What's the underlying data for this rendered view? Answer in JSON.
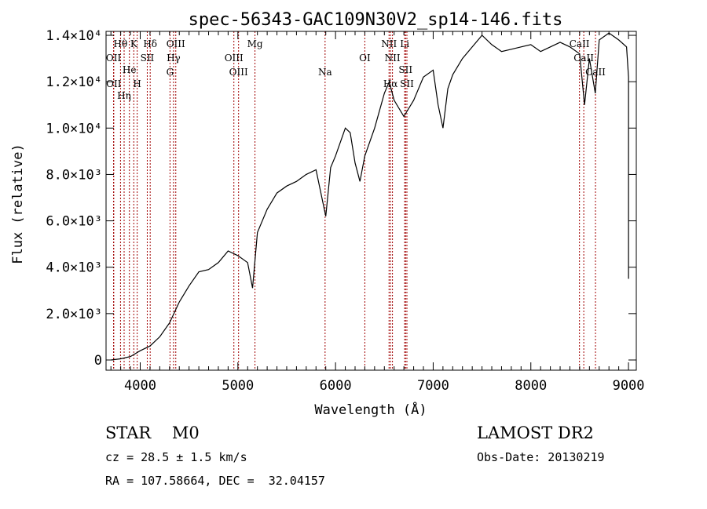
{
  "chart_data": {
    "type": "line",
    "title": "spec-56343-GAC109N30V2_sp14-146.fits",
    "xlabel": "Wavelength (Å)",
    "ylabel": "Flux (relative)",
    "xlim": [
      3650,
      9080
    ],
    "ylim": [
      -440,
      14170
    ],
    "xticks": [
      {
        "v": 4000,
        "label": "4000"
      },
      {
        "v": 5000,
        "label": "5000"
      },
      {
        "v": 6000,
        "label": "6000"
      },
      {
        "v": 7000,
        "label": "7000"
      },
      {
        "v": 8000,
        "label": "8000"
      },
      {
        "v": 9000,
        "label": "9000"
      }
    ],
    "yticks": [
      {
        "v": 0,
        "label": "0"
      },
      {
        "v": 2000,
        "label": "2.0×10³"
      },
      {
        "v": 4000,
        "label": "4.0×10³"
      },
      {
        "v": 6000,
        "label": "6.0×10³"
      },
      {
        "v": 8000,
        "label": "8.0×10³"
      },
      {
        "v": 10000,
        "label": "1.0×10⁴"
      },
      {
        "v": 12000,
        "label": "1.2×10⁴"
      },
      {
        "v": 14000,
        "label": "1.4×10⁴"
      }
    ],
    "series": [
      {
        "name": "spectrum",
        "x": [
          3700,
          3800,
          3900,
          4000,
          4100,
          4200,
          4300,
          4400,
          4500,
          4600,
          4700,
          4800,
          4900,
          5000,
          5100,
          5150,
          5200,
          5300,
          5400,
          5500,
          5600,
          5700,
          5800,
          5900,
          5950,
          6000,
          6100,
          6150,
          6200,
          6250,
          6300,
          6400,
          6500,
          6550,
          6600,
          6700,
          6800,
          6900,
          7000,
          7050,
          7100,
          7150,
          7200,
          7300,
          7400,
          7500,
          7600,
          7700,
          7800,
          7900,
          8000,
          8100,
          8200,
          8300,
          8400,
          8500,
          8550,
          8600,
          8660,
          8700,
          8800,
          8900,
          8980,
          9000,
          9000
        ],
        "y": [
          0,
          50,
          150,
          400,
          600,
          1000,
          1600,
          2500,
          3200,
          3800,
          3900,
          4200,
          4700,
          4500,
          4200,
          3100,
          5500,
          6500,
          7200,
          7500,
          7700,
          8000,
          8200,
          6200,
          8300,
          8800,
          10000,
          9800,
          8500,
          7700,
          8800,
          10000,
          11500,
          12000,
          11200,
          10500,
          11200,
          12200,
          12500,
          11000,
          10000,
          11700,
          12300,
          13000,
          13500,
          14000,
          13600,
          13300,
          13400,
          13500,
          13600,
          13300,
          13500,
          13700,
          13500,
          13200,
          11000,
          13000,
          11500,
          13800,
          14100,
          13800,
          13500,
          12200,
          3500
        ]
      }
    ],
    "lines": [
      {
        "w": 3798,
        "label": "Hθ",
        "row": 0
      },
      {
        "w": 3934,
        "label": "K",
        "row": 0
      },
      {
        "w": 4102,
        "label": "Hδ",
        "row": 0
      },
      {
        "w": 4364,
        "label": "OIII",
        "row": 0
      },
      {
        "w": 5175,
        "label": "Mg",
        "row": 0
      },
      {
        "w": 6548,
        "label": "NII",
        "row": 0
      },
      {
        "w": 6708,
        "label": "Li",
        "row": 0
      },
      {
        "w": 8498,
        "label": "CaII",
        "row": 0
      },
      {
        "w": 3727,
        "label": "OII",
        "row": 1
      },
      {
        "w": 3889,
        "label": "He",
        "row": 1
      },
      {
        "w": 4072,
        "label": "SII",
        "row": 1
      },
      {
        "w": 4341,
        "label": "Hγ",
        "row": 1
      },
      {
        "w": 4959,
        "label": "OIII",
        "row": 1
      },
      {
        "w": 6300,
        "label": "OI",
        "row": 1
      },
      {
        "w": 6583,
        "label": "NII",
        "row": 1
      },
      {
        "w": 6717,
        "label": "SII",
        "row": 1
      },
      {
        "w": 8542,
        "label": "CaII",
        "row": 1
      },
      {
        "w": 3729,
        "label": "OII",
        "row": 2
      },
      {
        "w": 3835,
        "label": "Hη",
        "row": 2
      },
      {
        "w": 3969,
        "label": "H",
        "row": 2
      },
      {
        "w": 4305,
        "label": "G",
        "row": 2
      },
      {
        "w": 5007,
        "label": "OIII",
        "row": 2
      },
      {
        "w": 5893,
        "label": "Na",
        "row": 2
      },
      {
        "w": 6563,
        "label": "Hα",
        "row": 2
      },
      {
        "w": 6731,
        "label": "SII",
        "row": 2
      },
      {
        "w": 8662,
        "label": "CaII",
        "row": 2
      }
    ]
  },
  "info": {
    "class": "STAR    M0",
    "survey": "LAMOST DR2",
    "cz": "cz = 28.5 ± 1.5 km/s",
    "obsdate": "Obs-Date: 20130219",
    "radec": "RA = 107.58664, DEC =  32.04157"
  }
}
